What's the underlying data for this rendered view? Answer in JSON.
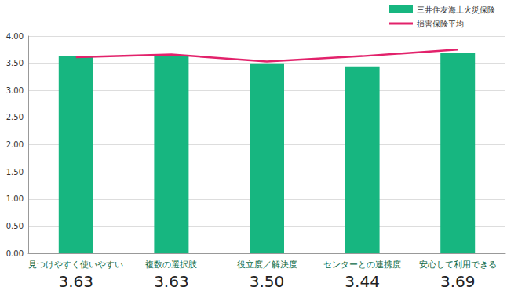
{
  "chart_data": {
    "type": "bar",
    "categories": [
      "見つけやすく使いやすい",
      "複数の選択肢",
      "役立度／解決度",
      "センターとの連携度",
      "安心して利用できる"
    ],
    "series": [
      {
        "name": "三井住友海上火災保険",
        "type": "bar",
        "color": "#17b680",
        "values": [
          3.63,
          3.63,
          3.5,
          3.44,
          3.69
        ],
        "value_labels": [
          "3.63",
          "3.63",
          "3.50",
          "3.44",
          "3.69"
        ]
      },
      {
        "name": "損害保険平均",
        "type": "line",
        "color": "#e2226b",
        "values": [
          3.61,
          3.66,
          3.53,
          3.63,
          3.75
        ]
      }
    ],
    "ylim": [
      0,
      4
    ],
    "yticks": [
      {
        "value": 0,
        "label": "0.00"
      },
      {
        "value": 0.5,
        "label": "0.50"
      },
      {
        "value": 1,
        "label": "1.00"
      },
      {
        "value": 1.5,
        "label": "1.50"
      },
      {
        "value": 2,
        "label": "2.00"
      },
      {
        "value": 2.5,
        "label": "2.50"
      },
      {
        "value": 3,
        "label": "3.00"
      },
      {
        "value": 3.5,
        "label": "3.50"
      },
      {
        "value": 4,
        "label": "4.00"
      }
    ],
    "grid": true,
    "legend": "top-right",
    "data_labels": true
  }
}
